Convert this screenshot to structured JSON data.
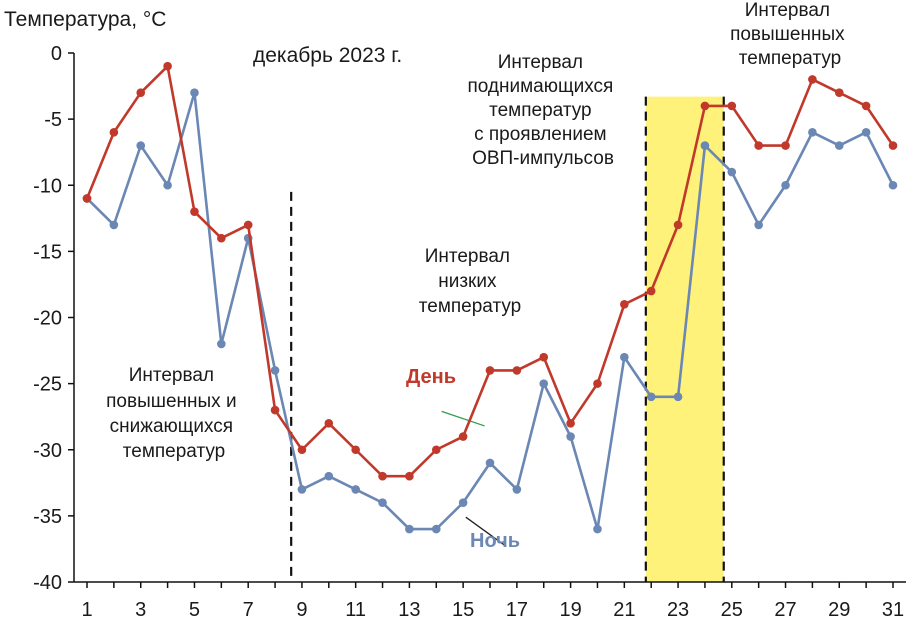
{
  "chart_data": {
    "type": "line",
    "ylabel": "Температура, °C",
    "title": "декабрь 2023 г.",
    "ylim": [
      -40,
      0
    ],
    "yticks": [
      0,
      -5,
      -10,
      -15,
      -20,
      -25,
      -30,
      -35,
      -40
    ],
    "xlim": [
      1,
      31
    ],
    "xticks": [
      1,
      3,
      5,
      7,
      9,
      11,
      13,
      15,
      17,
      19,
      21,
      23,
      25,
      27,
      29,
      31
    ],
    "x": [
      1,
      2,
      3,
      4,
      5,
      6,
      7,
      8,
      9,
      10,
      11,
      12,
      13,
      14,
      15,
      16,
      17,
      18,
      19,
      20,
      21,
      22,
      23,
      24,
      25,
      26,
      27,
      28,
      29,
      30,
      31
    ],
    "series": [
      {
        "name": "День",
        "color": "#c0392b",
        "values": [
          -11,
          -6,
          -3,
          -1,
          -12,
          -14,
          -13,
          -27,
          -30,
          -28,
          -30,
          -32,
          -32,
          -30,
          -29,
          -24,
          -24,
          -23,
          -28,
          -25,
          -19,
          -18,
          -13,
          -4,
          -4,
          -7,
          -7,
          -2,
          -3,
          -4,
          -7
        ]
      },
      {
        "name": "Ночь",
        "color": "#6b87b4",
        "values": [
          -11,
          -13,
          -7,
          -10,
          -3,
          -22,
          -14,
          -24,
          -33,
          -32,
          -33,
          -34,
          -36,
          -36,
          -34,
          -31,
          -33,
          -25,
          -29,
          -36,
          -23,
          -26,
          -26,
          -7,
          -9,
          -13,
          -10,
          -6,
          -7,
          -6,
          -10
        ]
      }
    ],
    "highlight": {
      "x0": 21.8,
      "x1": 24.7,
      "color": "#fff27a"
    },
    "vlines": [
      8.6,
      21.8,
      24.7
    ],
    "annotations": [
      {
        "id": "interval-1",
        "lines": [
          "Интервал",
          "повышенных и",
          "снижающихся",
          "температур"
        ]
      },
      {
        "id": "interval-2",
        "lines": [
          "Интервал",
          "низких",
          "температур"
        ]
      },
      {
        "id": "interval-3",
        "lines": [
          "Интервал",
          "поднимающихся",
          "температур",
          "с проявлением",
          "ОВП-импульсов"
        ]
      },
      {
        "id": "interval-4",
        "lines": [
          "Интервал",
          "повышенных",
          "температур"
        ]
      }
    ]
  }
}
